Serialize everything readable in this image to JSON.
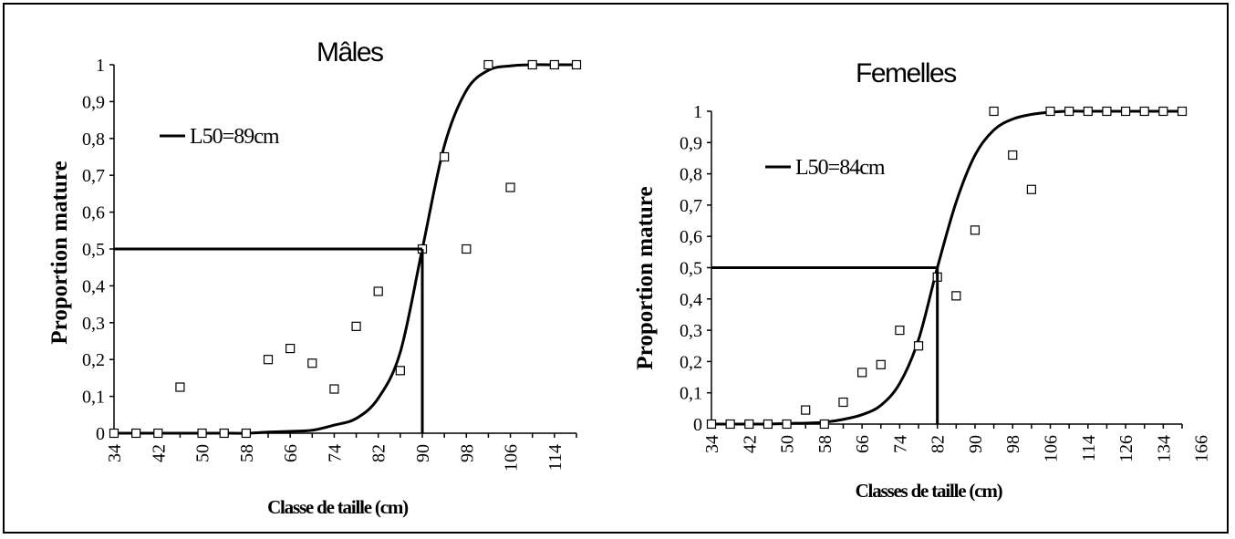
{
  "chart_data": [
    {
      "type": "scatter",
      "title": "Mâles",
      "xlabel": "Classe de taille (cm)",
      "ylabel": "Proportion mature",
      "ylim": [
        0,
        1
      ],
      "yticks": [
        "0",
        "0,1",
        "0,2",
        "0,3",
        "0,4",
        "0,5",
        "0,6",
        "0,7",
        "0,8",
        "0,9",
        "1"
      ],
      "categories": [
        "34",
        "38",
        "42",
        "46",
        "50",
        "54",
        "58",
        "62",
        "66",
        "70",
        "74",
        "78",
        "82",
        "86",
        "90",
        "94",
        "98",
        "102",
        "106",
        "110",
        "114",
        "118"
      ],
      "xtick_labels": [
        "34",
        "42",
        "50",
        "58",
        "66",
        "74",
        "82",
        "90",
        "98",
        "106",
        "114"
      ],
      "observed": [
        0,
        0,
        0,
        0.125,
        0,
        0,
        0,
        0.2,
        0.23,
        0.19,
        0.12,
        0.29,
        0.385,
        0.17,
        0.5,
        0.75,
        0.5,
        1,
        0.667,
        1,
        1,
        1
      ],
      "fitted": [
        0,
        0,
        0,
        0,
        0,
        0,
        0,
        0.003,
        0.005,
        0.008,
        0.022,
        0.04,
        0.095,
        0.22,
        0.5,
        0.78,
        0.93,
        0.985,
        0.997,
        1,
        1,
        1
      ],
      "legend": "L50=89cm",
      "l50_value": 0.5,
      "l50_category": "90"
    },
    {
      "type": "scatter",
      "title": "Femelles",
      "xlabel": "Classes de taille (cm)",
      "ylabel": "Proportion mature",
      "ylim": [
        0,
        1
      ],
      "yticks": [
        "0",
        "0,1",
        "0,2",
        "0,3",
        "0,4",
        "0,5",
        "0,6",
        "0,7",
        "0,8",
        "0,9",
        "1"
      ],
      "categories": [
        "34",
        "38",
        "42",
        "46",
        "50",
        "54",
        "58",
        "62",
        "66",
        "70",
        "74",
        "78",
        "82",
        "86",
        "90",
        "94",
        "98",
        "102",
        "106",
        "110",
        "114",
        "118",
        "122",
        "126",
        "130",
        "166"
      ],
      "xtick_labels": [
        "34",
        "42",
        "50",
        "58",
        "66",
        "74",
        "82",
        "90",
        "98",
        "106",
        "114",
        "126",
        "134",
        "166"
      ],
      "observed": [
        0,
        0,
        0,
        0,
        0,
        0.045,
        0,
        0.07,
        0.165,
        0.19,
        0.3,
        0.25,
        0.47,
        0.41,
        0.62,
        1,
        0.86,
        0.75,
        1,
        1,
        1,
        1,
        1,
        1,
        1,
        1
      ],
      "fitted": [
        0,
        0,
        0,
        0,
        0.002,
        0.003,
        0.006,
        0.015,
        0.03,
        0.06,
        0.13,
        0.27,
        0.5,
        0.71,
        0.86,
        0.94,
        0.975,
        0.99,
        0.997,
        1,
        1,
        1,
        1,
        1,
        1,
        1
      ],
      "legend": "L50=84cm",
      "l50_value": 0.5,
      "l50_category": "82"
    }
  ]
}
